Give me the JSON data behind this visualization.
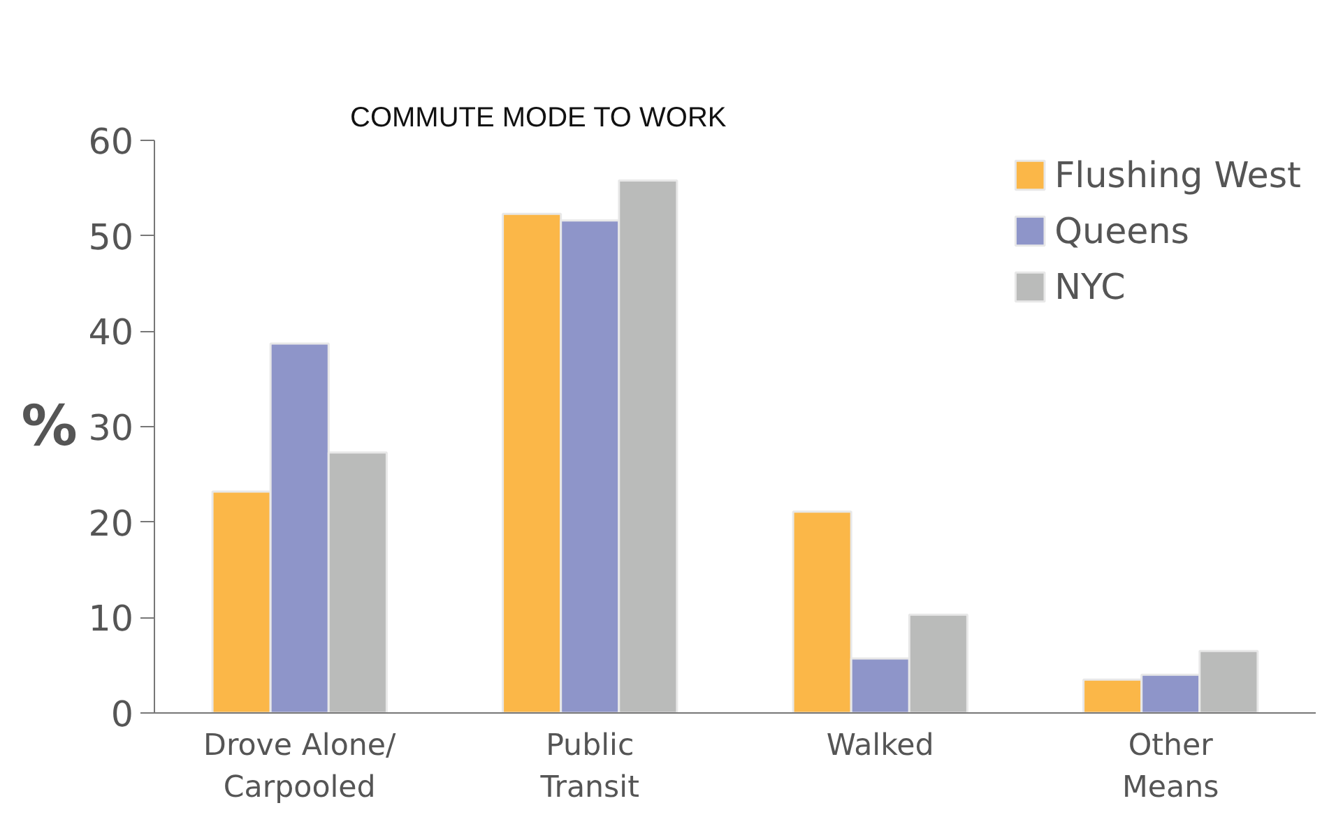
{
  "chart_data": {
    "type": "bar",
    "title": "COMMUTE MODE TO WORK",
    "ylabel": "%",
    "categories": [
      "Drove Alone/\nCarpooled",
      "Public\nTransit",
      "Walked",
      "Other\nMeans"
    ],
    "series": [
      {
        "name": "Flushing West",
        "color": "#fbb748",
        "values": [
          23.2,
          52.3,
          21.1,
          3.5
        ]
      },
      {
        "name": "Queens",
        "color": "#8e95c9",
        "values": [
          38.7,
          51.6,
          5.7,
          4.0
        ]
      },
      {
        "name": "NYC",
        "color": "#babbba",
        "values": [
          27.3,
          55.8,
          10.3,
          6.5
        ]
      }
    ],
    "ylim": [
      0,
      60
    ],
    "yticks": [
      0,
      10,
      20,
      30,
      40,
      50,
      60
    ],
    "grid": false,
    "legend": "top right"
  }
}
